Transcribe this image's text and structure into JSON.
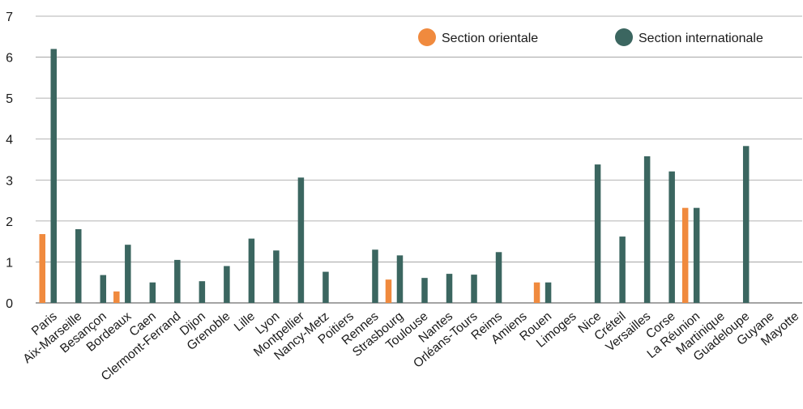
{
  "chart_data": {
    "type": "bar",
    "categories": [
      "Paris",
      "Aix-Marseille",
      "Besançon",
      "Bordeaux",
      "Caen",
      "Clermont-Ferrand",
      "Dijon",
      "Grenoble",
      "Lille",
      "Lyon",
      "Montpellier",
      "Nancy-Metz",
      "Poitiers",
      "Rennes",
      "Strasbourg",
      "Toulouse",
      "Nantes",
      "Orléans-Tours",
      "Reims",
      "Amiens",
      "Rouen",
      "Limoges",
      "Nice",
      "Créteil",
      "Versailles",
      "Corse",
      "La Réunion",
      "Martinique",
      "Guadeloupe",
      "Guyane",
      "Mayotte"
    ],
    "series": [
      {
        "name": "Section orientale",
        "color": "#F08A3E",
        "values": [
          1.68,
          0,
          0,
          0.28,
          0,
          0,
          0,
          0,
          0,
          0,
          0,
          0,
          0,
          0,
          0.57,
          0,
          0,
          0,
          0,
          0,
          0.5,
          0,
          0,
          0,
          0,
          0,
          2.32,
          0,
          0,
          0,
          0
        ]
      },
      {
        "name": "Section internationale",
        "color": "#3B6660",
        "values": [
          6.2,
          1.8,
          0.68,
          1.42,
          0.5,
          1.05,
          0.53,
          0.9,
          1.57,
          1.28,
          3.06,
          0.76,
          0,
          1.3,
          1.16,
          0.61,
          0.71,
          0.69,
          1.24,
          0,
          0.5,
          0,
          3.38,
          1.62,
          3.58,
          3.21,
          2.32,
          0,
          3.83,
          0,
          0
        ]
      }
    ],
    "ylim": [
      0,
      7
    ],
    "yticks": [
      "0",
      "1",
      "2",
      "3",
      "4",
      "5",
      "6",
      "7"
    ],
    "grid": true,
    "legend_position": "top-right"
  }
}
